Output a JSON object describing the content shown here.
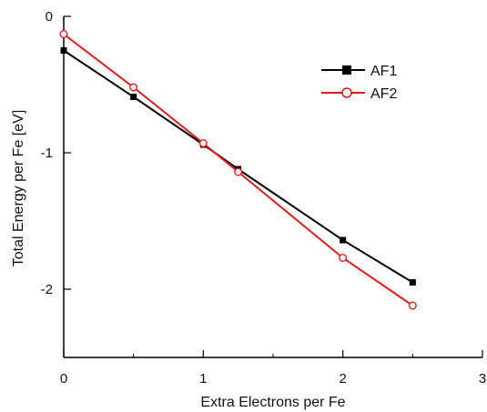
{
  "chart_data": {
    "type": "line",
    "xlabel": "Extra Electrons per Fe",
    "ylabel": "Total Energy per Fe [eV]",
    "xlim": [
      0,
      3
    ],
    "ylim": [
      -2.5,
      0
    ],
    "x_ticks": [
      "0",
      "1",
      "2",
      "3"
    ],
    "y_ticks": [
      "0",
      "-1",
      "-2"
    ],
    "grid": false,
    "legend_position": "top-right",
    "series": [
      {
        "name": "AF1",
        "color": "#000000",
        "marker": "filled-square",
        "x": [
          0,
          0.5,
          1,
          1.25,
          2,
          2.5
        ],
        "y": [
          -0.25,
          -0.59,
          -0.94,
          -1.12,
          -1.64,
          -1.95
        ]
      },
      {
        "name": "AF2",
        "color": "#e31a1c",
        "marker": "open-circle",
        "x": [
          0,
          0.5,
          1,
          1.25,
          2,
          2.5
        ],
        "y": [
          -0.13,
          -0.52,
          -0.93,
          -1.14,
          -1.77,
          -2.12
        ]
      }
    ]
  }
}
